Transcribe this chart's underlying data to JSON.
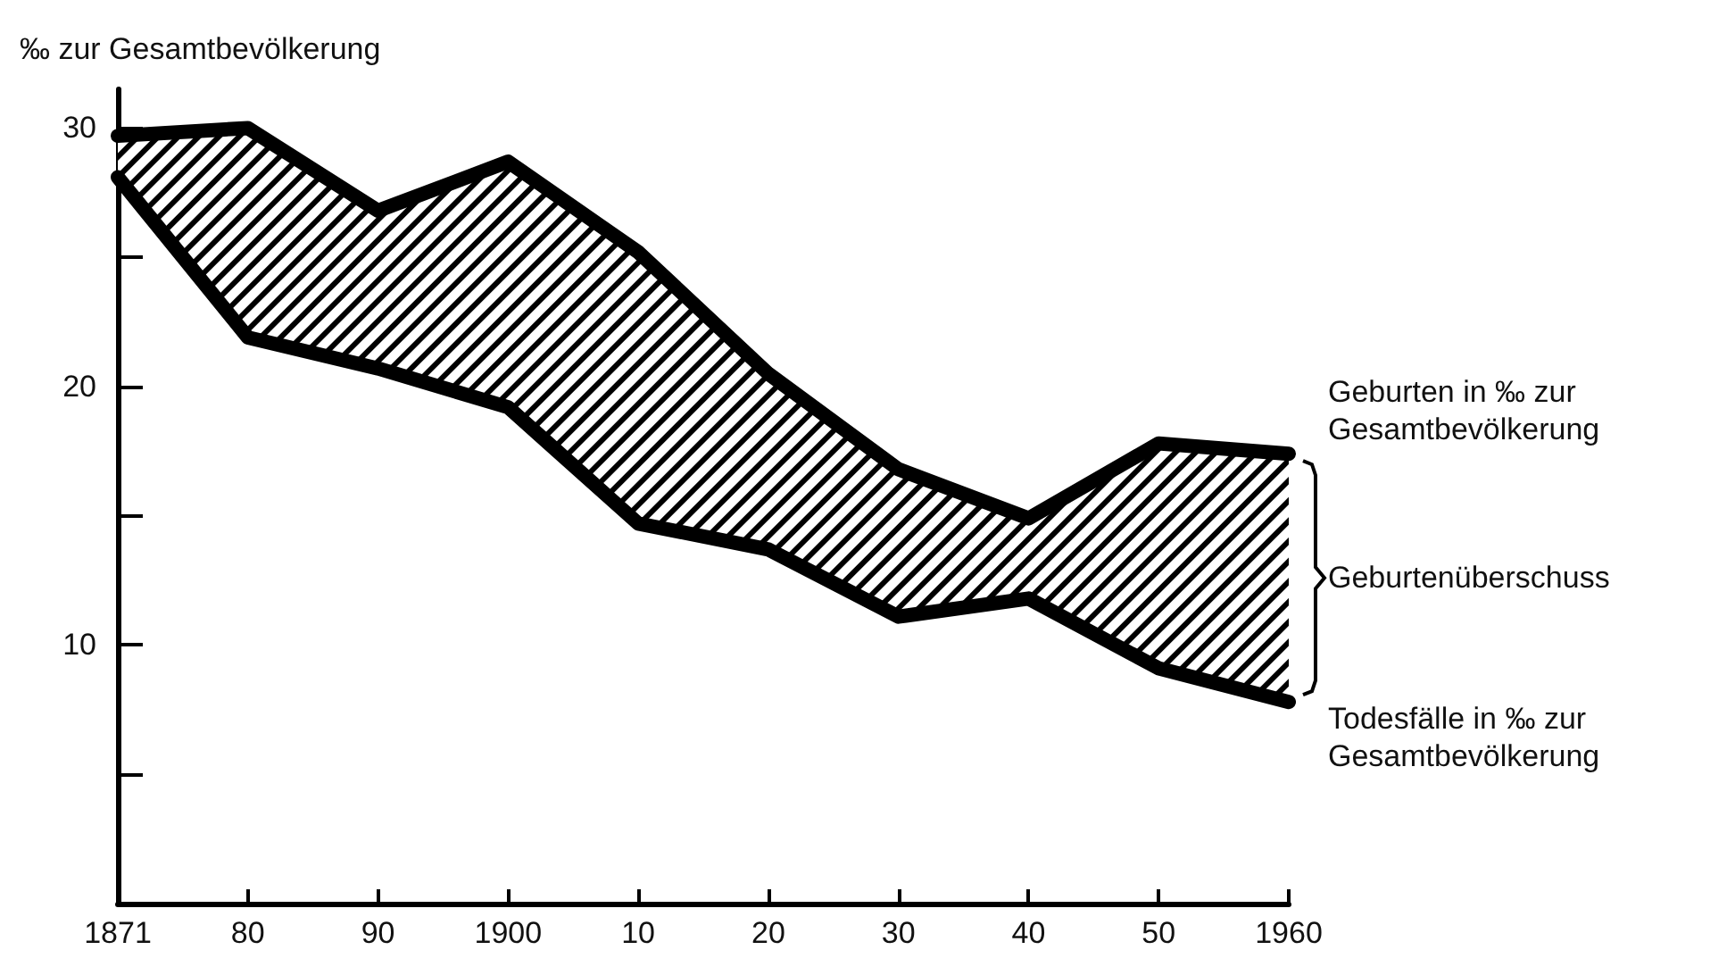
{
  "chart_data": {
    "type": "line",
    "ylabel": "‰ zur Gesamtbevölkerung",
    "categories": [
      "1871",
      "80",
      "90",
      "1900",
      "10",
      "20",
      "30",
      "40",
      "50",
      "1960"
    ],
    "series": [
      {
        "name": "Geburten in ‰ zur Gesamtbevölkerung",
        "color": "#000000",
        "values": [
          29.7,
          30.0,
          26.8,
          28.7,
          25.2,
          20.5,
          16.8,
          14.9,
          17.8,
          17.4
        ],
        "lower": [
          28.1,
          21.9,
          20.7,
          19.2,
          14.7,
          13.7,
          11.1,
          11.8,
          9.1,
          7.8
        ],
        "upper": [
          29.7,
          30.0,
          26.8,
          28.7,
          25.2,
          20.5,
          16.8,
          14.9,
          17.8,
          17.4
        ]
      },
      {
        "name": "Todesfälle in ‰ zur Gesamtbevölkerung",
        "color": "#000000",
        "values": [
          28.1,
          21.9,
          20.7,
          19.2,
          14.7,
          13.7,
          11.1,
          11.8,
          9.1,
          7.8
        ]
      }
    ],
    "ylim": [
      0,
      31.5
    ],
    "yticks": [
      {
        "value": 5,
        "label": null
      },
      10,
      {
        "value": 15,
        "label": null
      },
      20,
      {
        "value": 25,
        "label": null
      },
      30
    ],
    "annotations": [
      "Geburtenüberschuss"
    ],
    "marker": "none",
    "line_style": "solid"
  }
}
